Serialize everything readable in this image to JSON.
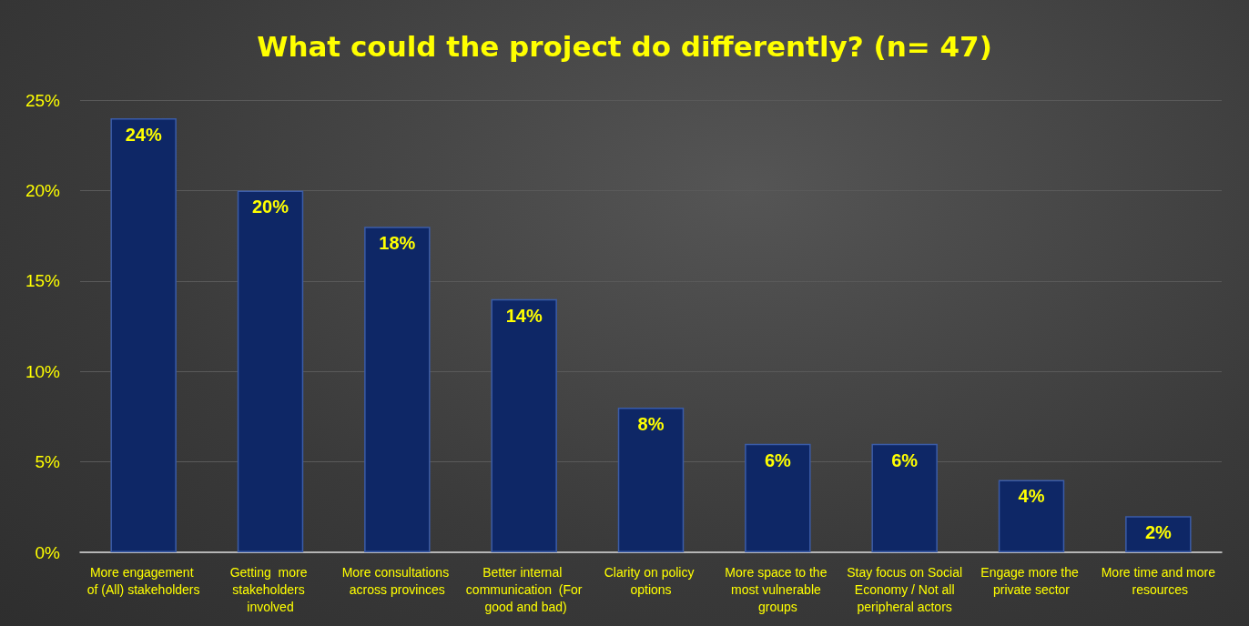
{
  "chart_data": {
    "type": "bar",
    "title": "What could the project do differently? (n= 47)",
    "categories": [
      "More engagement of (All) stakeholders",
      "Getting  more stakeholders involved",
      "More consultations across provinces",
      "Better internal communication  (For good and bad)",
      "Clarity on policy options",
      "More space to the most vulnerable groups",
      "Stay focus on Social Economy / Not all peripheral actors",
      "Engage more the private sector",
      "More time and more resources"
    ],
    "values": [
      24,
      20,
      18,
      14,
      8,
      6,
      6,
      4,
      2
    ],
    "value_labels": [
      "24%",
      "20%",
      "18%",
      "14%",
      "8%",
      "6%",
      "6%",
      "4%",
      "2%"
    ],
    "color": "#0e2766",
    "ylim": [
      0,
      25
    ],
    "yticks": [
      {
        "value": 0,
        "label": "0%"
      },
      {
        "value": 5,
        "label": "5%"
      },
      {
        "value": 10,
        "label": "10%"
      },
      {
        "value": 15,
        "label": "15%"
      },
      {
        "value": 20,
        "label": "20%"
      },
      {
        "value": 25,
        "label": "25%"
      }
    ],
    "grid": "y"
  }
}
